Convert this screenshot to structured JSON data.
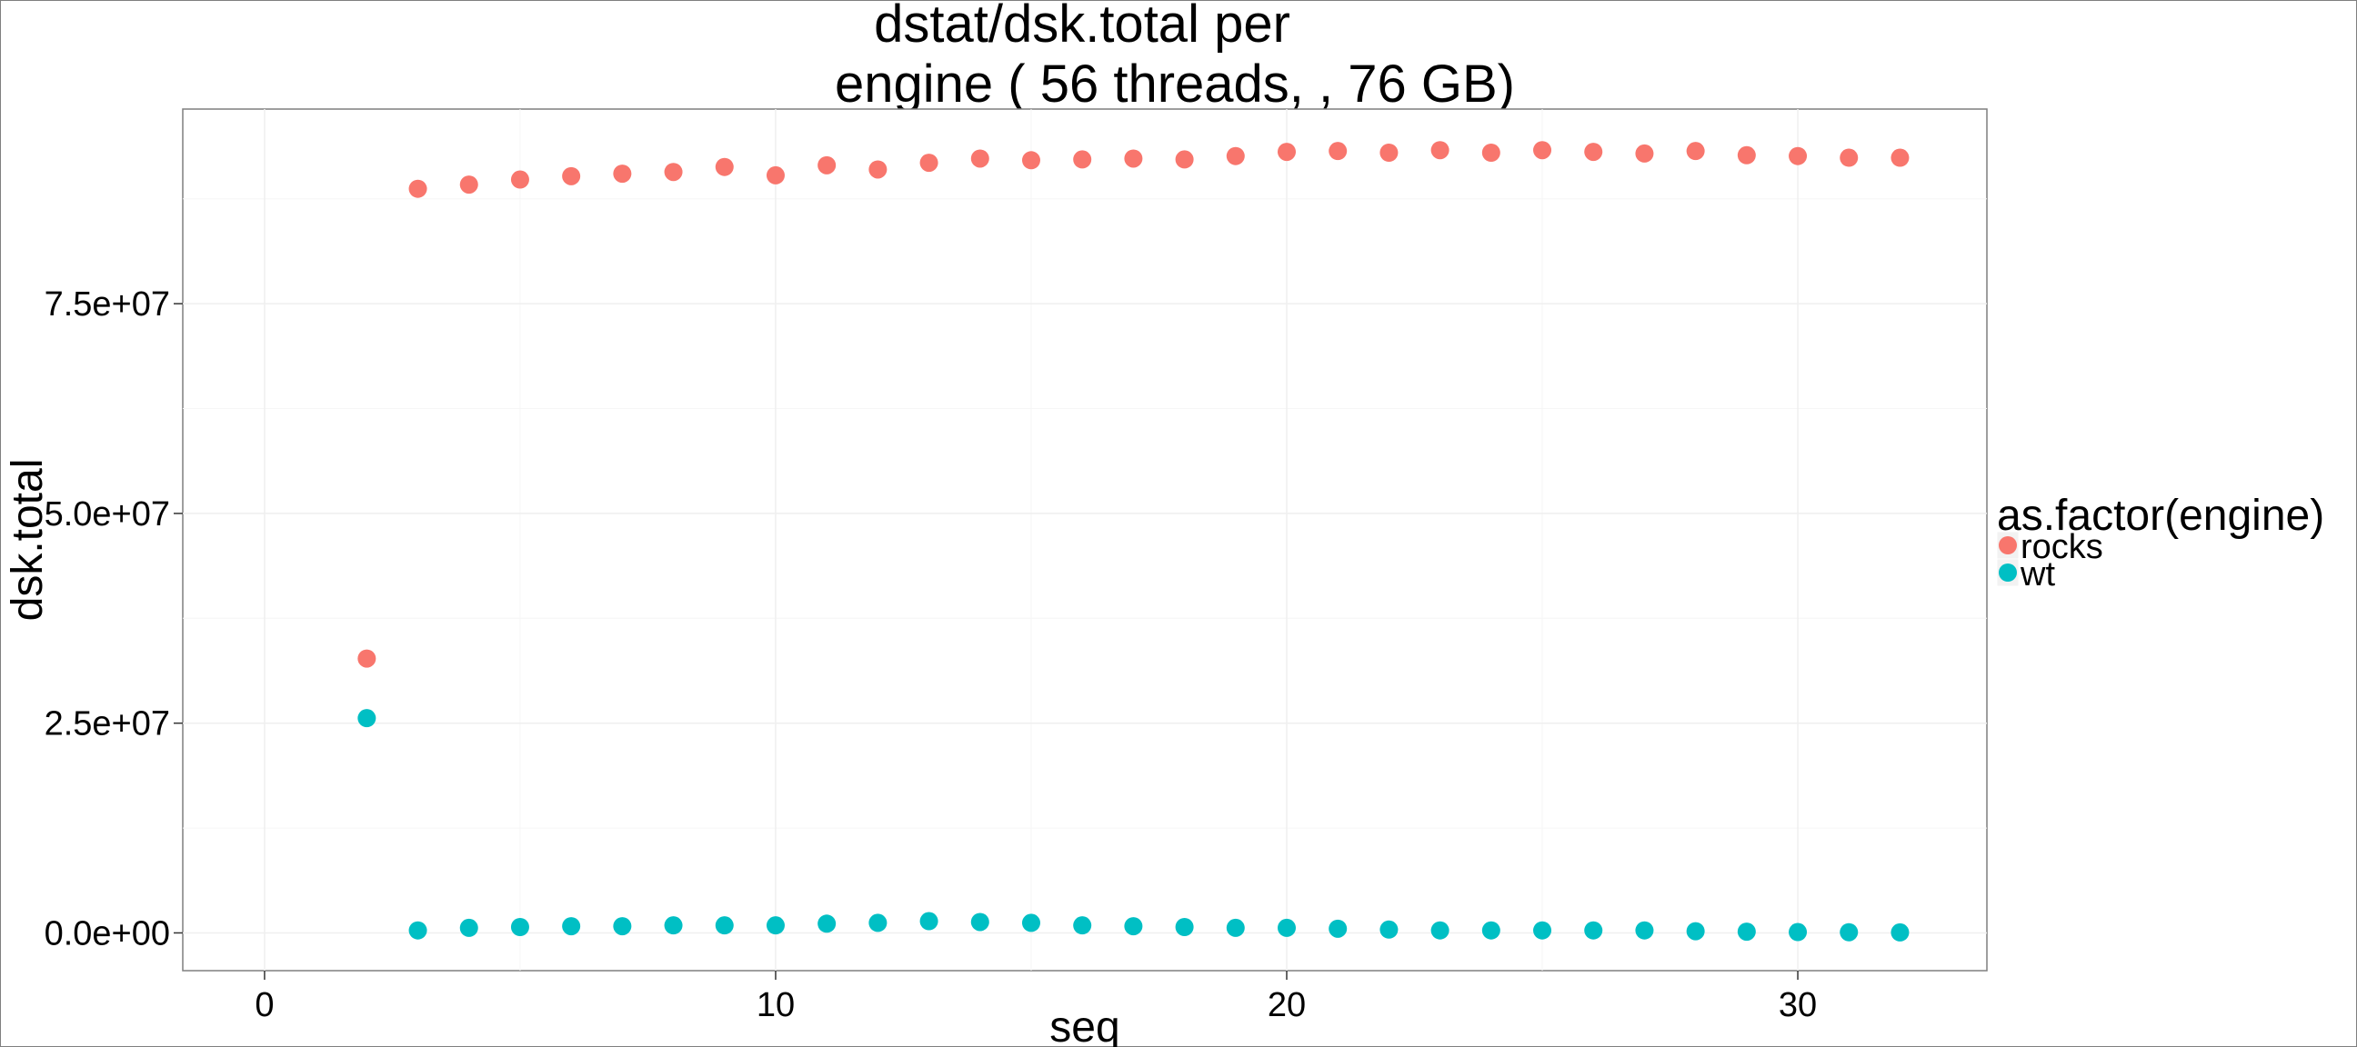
{
  "chart_data": {
    "type": "scatter",
    "title_line1": "dstat/dsk.total per",
    "title_line2": "engine ( 56  threads, , 76 GB)",
    "xlabel": "seq",
    "ylabel": "dsk.total",
    "xlim": [
      -1.6,
      33.7
    ],
    "ylim": [
      -4500000,
      98200000
    ],
    "x_ticks": [
      0,
      10,
      20,
      30
    ],
    "x_tick_labels": [
      "0",
      "10",
      "20",
      "30"
    ],
    "y_ticks": [
      0,
      25000000,
      50000000,
      75000000
    ],
    "y_tick_labels": [
      "0.0e+00",
      "2.5e+07",
      "5.0e+07",
      "7.5e+07"
    ],
    "grid": true,
    "legend": {
      "title": "as.factor(engine)",
      "position": "right",
      "entries": [
        {
          "label": "rocks",
          "color": "#F8766D"
        },
        {
          "label": "wt",
          "color": "#00BFC4"
        }
      ]
    },
    "series": [
      {
        "name": "rocks",
        "color": "#F8766D",
        "x": [
          2,
          3,
          4,
          5,
          6,
          7,
          8,
          9,
          10,
          11,
          12,
          13,
          14,
          15,
          16,
          17,
          18,
          19,
          20,
          21,
          22,
          23,
          24,
          25,
          26,
          27,
          28,
          29,
          30,
          31,
          32
        ],
        "y": [
          32700000,
          88700000,
          89200000,
          89800000,
          90200000,
          90500000,
          90700000,
          91300000,
          90300000,
          91500000,
          91000000,
          91800000,
          92300000,
          92100000,
          92200000,
          92300000,
          92200000,
          92600000,
          93100000,
          93200000,
          93000000,
          93300000,
          93000000,
          93300000,
          93100000,
          92900000,
          93200000,
          92700000,
          92600000,
          92400000,
          92400000
        ]
      },
      {
        "name": "wt",
        "color": "#00BFC4",
        "x": [
          2,
          3,
          4,
          5,
          6,
          7,
          8,
          9,
          10,
          11,
          12,
          13,
          14,
          15,
          16,
          17,
          18,
          19,
          20,
          21,
          22,
          23,
          24,
          25,
          26,
          27,
          28,
          29,
          30,
          31,
          32
        ],
        "y": [
          25600000,
          300000,
          600000,
          700000,
          800000,
          800000,
          900000,
          900000,
          900000,
          1100000,
          1200000,
          1400000,
          1300000,
          1200000,
          900000,
          800000,
          700000,
          600000,
          600000,
          500000,
          400000,
          300000,
          300000,
          300000,
          300000,
          300000,
          200000,
          150000,
          100000,
          80000,
          60000
        ]
      }
    ]
  }
}
